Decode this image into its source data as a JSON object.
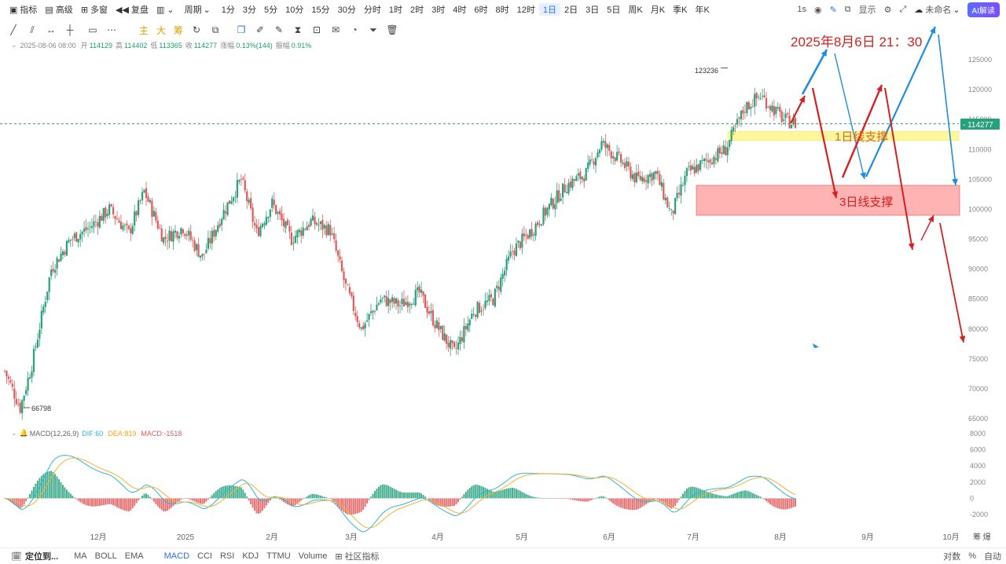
{
  "toolbar": {
    "indicators": "指标",
    "advanced": "高级",
    "multi_window": "多窗",
    "replay": "复盘",
    "period": "周期",
    "periods": [
      "1分",
      "3分",
      "5分",
      "10分",
      "15分",
      "30分",
      "分时",
      "1时",
      "2时",
      "3时",
      "4时",
      "6时",
      "8时",
      "12时",
      "1日",
      "2日",
      "3日",
      "5日",
      "周K",
      "月K",
      "季K",
      "年K"
    ],
    "active_period": "1日",
    "interval": "1s",
    "display": "显示",
    "unnamed": "未命名",
    "ai_button": "AI解读"
  },
  "drawing_tools": {
    "main": "主",
    "big": "大",
    "chip": "筹"
  },
  "info_bar": {
    "date": "2025-08-06 08:00",
    "open_label": "开",
    "open": "114129",
    "high_label": "高",
    "high": "114402",
    "low_label": "低",
    "low": "113365",
    "close_label": "收",
    "close": "114277",
    "change_label": "涨幅",
    "change": "0.13%(144)",
    "amplitude_label": "振幅",
    "amplitude": "0.91%"
  },
  "price_axis": {
    "ticks": [
      "125000",
      "120000",
      "115000",
      "110000",
      "105000",
      "100000",
      "95000",
      "90000",
      "85000",
      "80000",
      "75000",
      "70000",
      "65000"
    ],
    "current_price": "114277",
    "current_price_label": "- 114277"
  },
  "annotations": {
    "high_marker": "123236",
    "low_marker": "66798",
    "datetime_note": "2025年8月6日 21：30",
    "support_1d": "1日线支撑",
    "support_3d": "3日线支撑"
  },
  "macd": {
    "label": "MACD(12,26,9)",
    "dif_label": "DIF:",
    "dif": "60",
    "dea_label": "DEA:",
    "dea": "819",
    "macd_label": "MACD:",
    "macd_value": "-1518",
    "ticks": [
      "8000",
      "6000",
      "4000",
      "2000",
      "0",
      "-2000"
    ]
  },
  "time_axis": {
    "labels": [
      "12月",
      "2025",
      "2月",
      "3月",
      "4月",
      "5月",
      "6月",
      "7月",
      "8月",
      "9月",
      "10月"
    ]
  },
  "bottom_bar": {
    "locate": "定位到...",
    "ma": "MA",
    "boll": "BOLL",
    "ema": "EMA",
    "macd": "MACD",
    "cci": "CCI",
    "rsi": "RSI",
    "kdj": "KDJ",
    "ttmu": "TTMU",
    "volume": "Volume",
    "community": "社区指标",
    "log": "对数",
    "percent": "%",
    "auto": "自动",
    "right_vertical": "筹 爆"
  },
  "colors": {
    "up": "#26a17b",
    "down": "#e05a5a",
    "accent": "#2a6df5",
    "annotation_red": "#d42020",
    "annotation_blue": "#1e8ee0",
    "support_1d_fill": "#fff79a",
    "support_3d_fill": "#ffb3b3",
    "dif_line": "#2fb7d6",
    "dea_line": "#f2b233"
  },
  "chart_data": {
    "type": "candlestick",
    "symbol_period": "1日",
    "x_labels": [
      "12月",
      "2025",
      "2月",
      "3月",
      "4月",
      "5月",
      "6月",
      "7月",
      "8月",
      "9月",
      "10月"
    ],
    "ylim": [
      63000,
      128000
    ],
    "y_ticks": [
      125000,
      120000,
      115000,
      110000,
      105000,
      100000,
      95000,
      90000,
      85000,
      80000,
      75000,
      70000,
      65000
    ],
    "price_path": [
      [
        0,
        73000
      ],
      [
        8,
        66798
      ],
      [
        14,
        74000
      ],
      [
        24,
        90000
      ],
      [
        34,
        95000
      ],
      [
        44,
        97000
      ],
      [
        54,
        100000
      ],
      [
        64,
        96000
      ],
      [
        72,
        103000
      ],
      [
        82,
        95000
      ],
      [
        92,
        97000
      ],
      [
        102,
        92000
      ],
      [
        112,
        99000
      ],
      [
        122,
        105000
      ],
      [
        130,
        96000
      ],
      [
        138,
        101000
      ],
      [
        148,
        95000
      ],
      [
        158,
        98000
      ],
      [
        168,
        96500
      ],
      [
        176,
        87000
      ],
      [
        184,
        80000
      ],
      [
        194,
        85000
      ],
      [
        204,
        84000
      ],
      [
        214,
        86000
      ],
      [
        222,
        81000
      ],
      [
        232,
        76000
      ],
      [
        242,
        83000
      ],
      [
        252,
        85000
      ],
      [
        262,
        93000
      ],
      [
        272,
        96500
      ],
      [
        280,
        100000
      ],
      [
        290,
        104000
      ],
      [
        300,
        106000
      ],
      [
        308,
        111000
      ],
      [
        318,
        108000
      ],
      [
        326,
        105000
      ],
      [
        336,
        106000
      ],
      [
        344,
        99000
      ],
      [
        352,
        106000
      ],
      [
        362,
        108000
      ],
      [
        372,
        110000
      ],
      [
        382,
        117000
      ],
      [
        390,
        119000
      ],
      [
        396,
        117000
      ],
      [
        402,
        115000
      ],
      [
        408,
        114277
      ]
    ],
    "annotation_levels": {
      "high": 123236,
      "low": 66798,
      "current": 114277
    },
    "support_zones": [
      {
        "label": "1日线支撑",
        "from": 111500,
        "to": 113000
      },
      {
        "label": "3日线支撑",
        "from": 99000,
        "to": 104000
      }
    ],
    "macd": {
      "ylim": [
        -3000,
        8000
      ],
      "ticks": [
        8000,
        6000,
        4000,
        2000,
        0,
        -2000
      ],
      "dif": 60,
      "dea": 819,
      "hist": -1518
    }
  }
}
